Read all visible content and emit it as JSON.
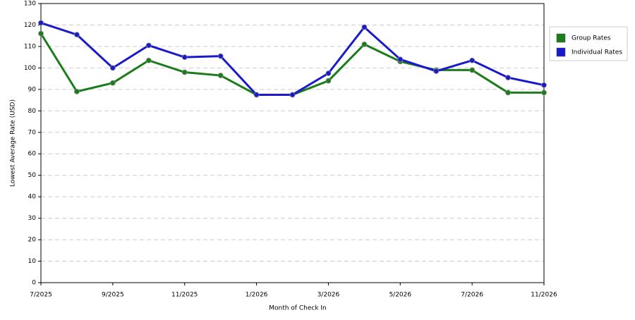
{
  "chart_data": {
    "type": "line",
    "x_label": "Month of Check In",
    "y_label": "Lowest Average Rate (USD)",
    "categories": [
      "7/2025",
      null,
      "9/2025",
      null,
      "11/2025",
      null,
      "1/2026",
      null,
      "3/2026",
      null,
      "5/2026",
      null,
      "7/2026",
      null,
      "11/2026"
    ],
    "series": [
      {
        "name": "Group Rates",
        "color": "#1a7d1a",
        "values": [
          116,
          89,
          93,
          103.5,
          98,
          96.5,
          87.5,
          87.5,
          94,
          111,
          103,
          99,
          99,
          88.5,
          88.5
        ]
      },
      {
        "name": "Individual Rates",
        "color": "#1a1acc",
        "values": [
          121,
          115.5,
          100,
          110.5,
          105,
          105.5,
          87.5,
          87.5,
          97.5,
          119,
          104,
          98.5,
          103.5,
          95.5,
          92
        ]
      }
    ],
    "ylim": [
      0,
      130
    ],
    "yticks": [
      0,
      10,
      20,
      30,
      40,
      50,
      60,
      70,
      80,
      90,
      100,
      110,
      120,
      130
    ],
    "grid": true,
    "legend": "right"
  }
}
